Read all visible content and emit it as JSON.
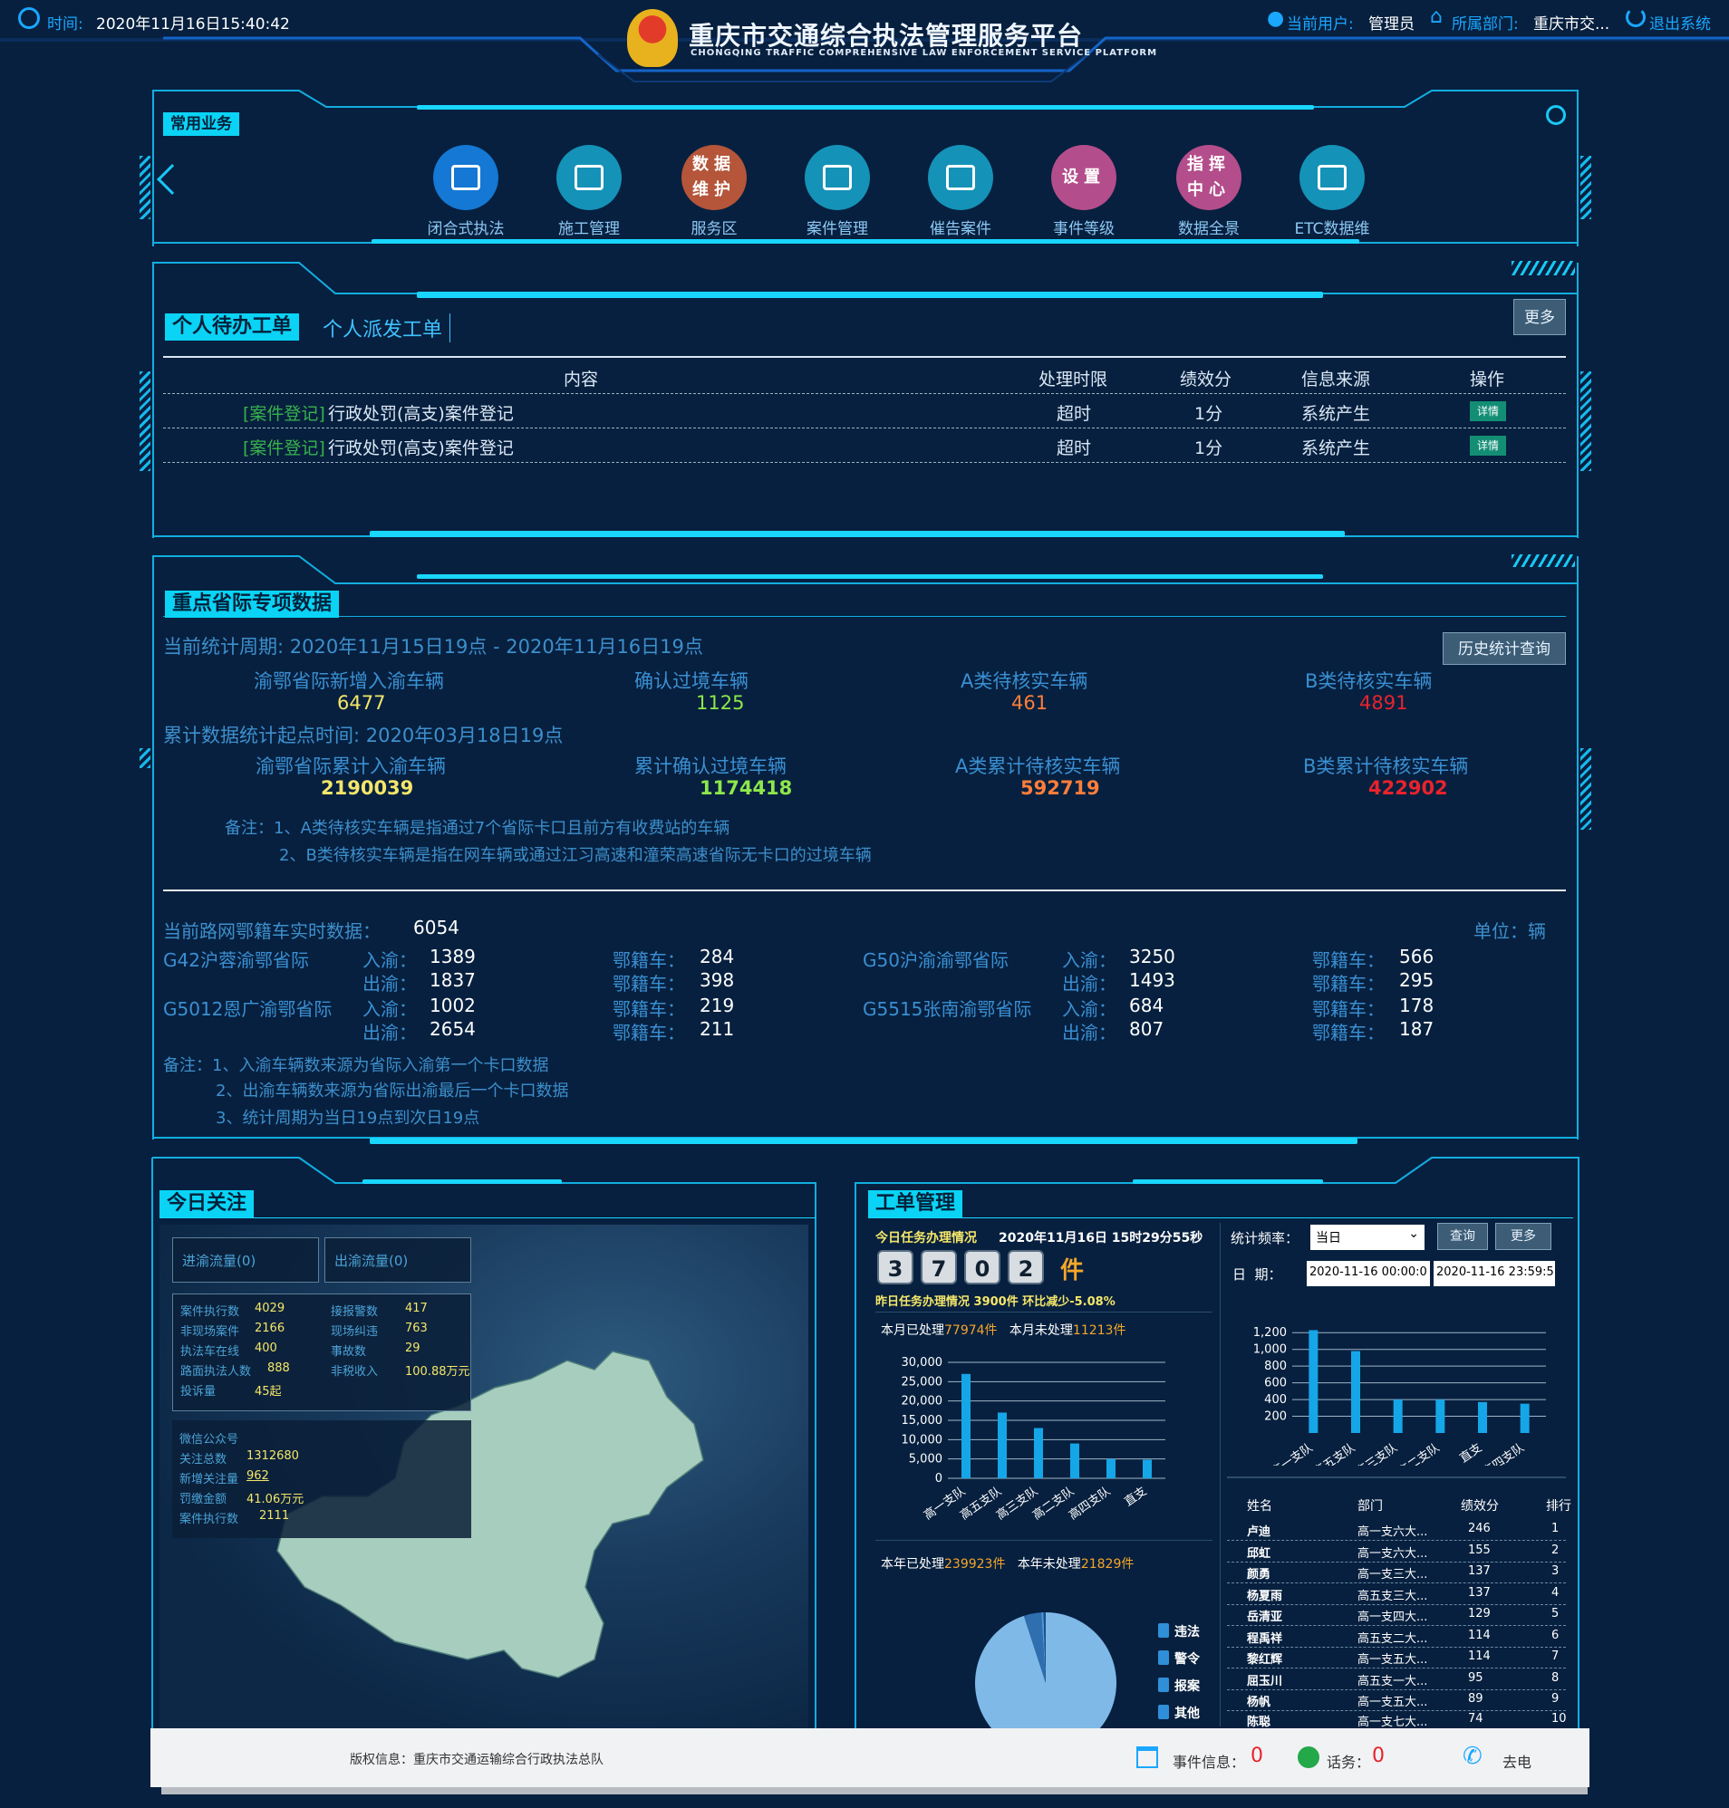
{
  "header": {
    "time_label": "时间:",
    "time_value": "2020年11月16日15:40:42",
    "title": "重庆市交通综合执法管理服务平台",
    "subtitle": "CHONGQING TRAFFIC COMPREHENSIVE LAW ENFORCEMENT SERVICE PLATFORM",
    "user_label": "当前用户:",
    "user_value": "管理员",
    "dept_label": "所属部门:",
    "dept_value": "重庆市交...",
    "logout": "退出系统"
  },
  "common": {
    "tag": "常用业务",
    "items": [
      {
        "label": "闭合式执法",
        "icon": "police-cap-icon",
        "color": "#1478d4"
      },
      {
        "label": "施工管理",
        "icon": "barrier-icon",
        "color": "#1592b8"
      },
      {
        "label": "服务区",
        "icon_text": "数据维护",
        "color": "#b5553a"
      },
      {
        "label": "案件管理",
        "icon": "grid-icon",
        "color": "#1592b8"
      },
      {
        "label": "催告案件",
        "icon": "grid-icon",
        "color": "#1592b8"
      },
      {
        "label": "事件等级",
        "icon_text": "设置",
        "color": "#b44d8b"
      },
      {
        "label": "数据全景",
        "icon_text": "指挥中心",
        "color": "#b44d8b"
      },
      {
        "label": "ETC数据维",
        "icon": "grid-icon",
        "color": "#1592b8"
      }
    ]
  },
  "todo": {
    "tab_active": "个人待办工单",
    "tab_inactive": "个人派发工单",
    "more": "更多",
    "columns": [
      "内容",
      "处理时限",
      "绩效分",
      "信息来源",
      "操作"
    ],
    "rows": [
      {
        "tag": "[案件登记]",
        "content": "行政处罚(高支)案件登记",
        "limit": "超时",
        "score": "1分",
        "source": "系统产生",
        "action": "详情"
      },
      {
        "tag": "[案件登记]",
        "content": "行政处罚(高支)案件登记",
        "limit": "超时",
        "score": "1分",
        "source": "系统产生",
        "action": "详情"
      }
    ]
  },
  "special": {
    "tag": "重点省际专项数据",
    "period": "当前统计周期:  2020年11月15日19点 - 2020年11月16日19点",
    "history_btn": "历史统计查询",
    "current": [
      {
        "label": "渝鄂省际新增入渝车辆",
        "value": "6477",
        "color": "#f4e66a"
      },
      {
        "label": "确认过境车辆",
        "value": "1125",
        "color": "#8ee84b"
      },
      {
        "label": "A类待核实车辆",
        "value": "461",
        "color": "#ff7e3a"
      },
      {
        "label": "B类待核实车辆",
        "value": "4891",
        "color": "#e8232c"
      }
    ],
    "cumulative_start": "累计数据统计起点时间:  2020年03月18日19点",
    "cumulative": [
      {
        "label": "渝鄂省际累计入渝车辆",
        "value": "2190039",
        "color": "#f4e66a"
      },
      {
        "label": "累计确认过境车辆",
        "value": "1174418",
        "color": "#8ee84b"
      },
      {
        "label": "A类累计待核实车辆",
        "value": "592719",
        "color": "#ff7e3a"
      },
      {
        "label": "B类累计待核实车辆",
        "value": "422902",
        "color": "#e8232c"
      }
    ],
    "note1": "备注：1、A类待核实车辆是指通过7个省际卡口且前方有收费站的车辆",
    "note2": "2、B类待核实车辆是指在网车辆或通过江习高速和潼荣高速省际无卡口的过境车辆",
    "realtime_label": "当前路网鄂籍车实时数据：",
    "realtime_value": "6054",
    "unit": "单位：辆",
    "checkpoints": [
      {
        "name": "G42沪蓉渝鄂省际",
        "in": "1389",
        "out": "1837",
        "e_in": "284",
        "e_out": "398"
      },
      {
        "name": "G5012恩广渝鄂省际",
        "in": "1002",
        "out": "2654",
        "e_in": "219",
        "e_out": "211"
      },
      {
        "name": "G50沪渝渝鄂省际",
        "in": "3250",
        "out": "1493",
        "e_in": "566",
        "e_out": "295"
      },
      {
        "name": "G5515张南渝鄂省际",
        "in": "684",
        "out": "807",
        "e_in": "178",
        "e_out": "187"
      }
    ],
    "in_label": "入渝：",
    "out_label": "出渝：",
    "e_label": "鄂籍车：",
    "note3": "备注：1、入渝车辆数来源为省际入渝第一个卡口数据",
    "note4": "2、出渝车辆数来源为省际出渝最后一个卡口数据",
    "note5": "3、统计周期为当日19点到次日19点"
  },
  "today": {
    "tag": "今日关注",
    "btn_in": "进渝流量(0)",
    "btn_out": "出渝流量(0)",
    "stats": [
      {
        "k": "案件执行数",
        "v": "4029"
      },
      {
        "k": "接报警数",
        "v": "417"
      },
      {
        "k": "非现场案件",
        "v": "2166"
      },
      {
        "k": "现场纠违",
        "v": "763"
      },
      {
        "k": "执法车在线",
        "v": "400"
      },
      {
        "k": "事故数",
        "v": "29"
      },
      {
        "k": "路面执法人数",
        "v": "888"
      },
      {
        "k": "非税收入",
        "v": "100.88万元"
      },
      {
        "k": "投诉量",
        "v": "45起"
      }
    ],
    "wechat_title": "微信公众号",
    "wechat": [
      {
        "k": "关注总数",
        "v": "1312680"
      },
      {
        "k": "新增关注量",
        "v": "962"
      },
      {
        "k": "罚缴金额",
        "v": "41.06万元"
      },
      {
        "k": "案件执行数",
        "v": "2111"
      }
    ]
  },
  "workorder": {
    "tag": "工单管理",
    "today_label": "今日任务办理情况",
    "today_time": "2020年11月16日 15时29分55秒",
    "digits": [
      "3",
      "7",
      "0",
      "2"
    ],
    "digits_unit": "件",
    "yesterday": "昨日任务办理情况 3900件   环比减少-5.08%",
    "month_done_label": "本月已处理",
    "month_done": "77974件",
    "month_undone_label": "本月未处理",
    "month_undone": "11213件",
    "year_done_label": "本年已处理",
    "year_done": "239923件",
    "year_undone_label": "本年未处理",
    "year_undone": "21829件",
    "freq_label": "统计频率：",
    "freq_value": "当日",
    "query_btn": "查询",
    "more_btn": "更多",
    "date_label": "日  期：",
    "date_from": "2020-11-16 00:00:0",
    "date_to": "2020-11-16 23:59:5",
    "pie_legend": [
      "违法",
      "警令",
      "报案",
      "其他"
    ],
    "rank_columns": [
      "姓名",
      "部门",
      "绩效分",
      "排行"
    ],
    "rank": [
      [
        "卢迪",
        "高一支六大...",
        "246",
        "1"
      ],
      [
        "邱虹",
        "高一支六大...",
        "155",
        "2"
      ],
      [
        "颜勇",
        "高一支三大...",
        "137",
        "3"
      ],
      [
        "杨夏雨",
        "高五支三大...",
        "137",
        "4"
      ],
      [
        "岳清亚",
        "高一支四大...",
        "129",
        "5"
      ],
      [
        "程禹祥",
        "高五支二大...",
        "114",
        "6"
      ],
      [
        "黎红辉",
        "高一支五大...",
        "114",
        "7"
      ],
      [
        "屈玉川",
        "高五支一大...",
        "95",
        "8"
      ],
      [
        "杨帆",
        "高一支五大...",
        "89",
        "9"
      ],
      [
        "陈聪",
        "高一支七大...",
        "74",
        "10"
      ]
    ]
  },
  "chart_data": [
    {
      "type": "bar",
      "categories": [
        "高一支队",
        "高五支队",
        "高三支队",
        "高二支队",
        "高四支队",
        "直支"
      ],
      "values": [
        27000,
        17000,
        13000,
        9000,
        5000,
        4800
      ],
      "ylim": [
        0,
        30000
      ],
      "yticks": [
        "30,000",
        "25,000",
        "20,000",
        "15,000",
        "10,000",
        "5,000",
        "0"
      ]
    },
    {
      "type": "bar",
      "categories": [
        "高一支队",
        "高五支队",
        "高三支队",
        "高二支队",
        "直支",
        "高四支队"
      ],
      "values": [
        1230,
        980,
        400,
        400,
        370,
        350
      ],
      "ylim": [
        0,
        1300
      ],
      "yticks": [
        "1,200",
        "1,000",
        "800",
        "600",
        "400",
        "200"
      ]
    },
    {
      "type": "pie",
      "categories": [
        "违法",
        "警令",
        "报案",
        "其他"
      ],
      "values": [
        95,
        4,
        0.5,
        0.5
      ]
    }
  ],
  "footer": {
    "copyright": "版权信息：重庆市交通运输综合行政执法总队",
    "event_label": "事件信息：",
    "event_value": "0",
    "call_label": "话务：",
    "call_value": "0",
    "dial_label": "去电"
  }
}
